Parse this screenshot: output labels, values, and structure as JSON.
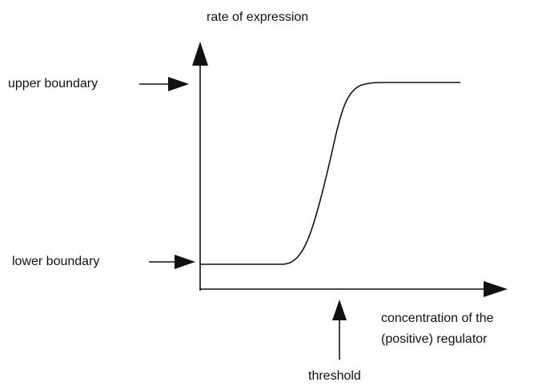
{
  "y_axis_label": "rate of expression",
  "upper_label": "upper boundary",
  "lower_label": "lower boundary",
  "x_axis_label": [
    "concentration of the",
    "(positive) regulator"
  ],
  "threshold_label": "threshold"
}
